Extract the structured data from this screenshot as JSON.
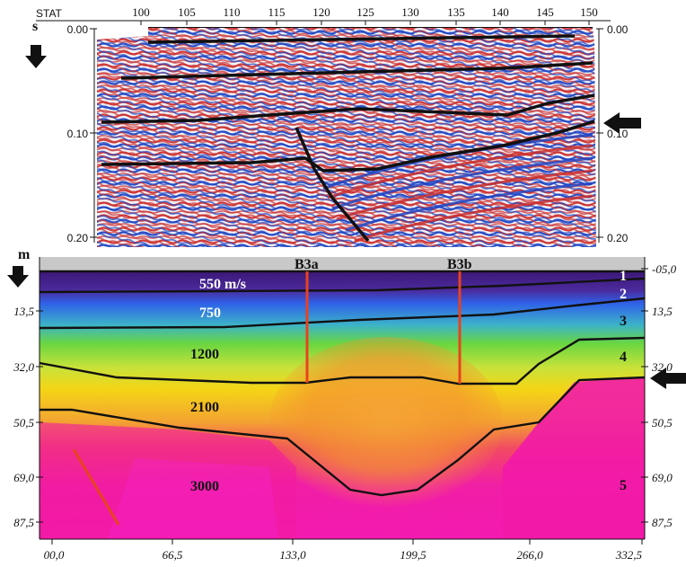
{
  "seismic": {
    "header_label": "STAT",
    "unit_label": "s",
    "station_ticks": [
      "100",
      "105",
      "110",
      "115",
      "120",
      "125",
      "130",
      "135",
      "140",
      "145",
      "150"
    ],
    "time_ticks_left": [
      "0.00",
      "0.10",
      "0.20"
    ],
    "time_ticks_right": [
      "0.00",
      "0.10",
      "0.20"
    ]
  },
  "velocity": {
    "unit_label": "m",
    "depth_ticks_left": [
      "13,5",
      "32,0",
      "50,5",
      "69,0",
      "87,5"
    ],
    "depth_ticks_right": [
      "-05,0",
      "13,5",
      "32,0",
      "50,5",
      "69,0",
      "87,5"
    ],
    "distance_ticks": [
      "00,0",
      "66,5",
      "133,0",
      "199,5",
      "266,0",
      "332,5"
    ],
    "velocities": [
      "550 m/s",
      "750",
      "1200",
      "2100",
      "3000"
    ],
    "layer_numbers": [
      "1",
      "2",
      "3",
      "4",
      "5"
    ],
    "boreholes": [
      "B3a",
      "B3b"
    ],
    "colors": {
      "v550": "#4a1a8c",
      "v750": "#2e63e6",
      "v1200": "#5fd14a",
      "v2100": "#f2d21a",
      "v3000": "#f21aa8",
      "borehole": "#e8431e"
    }
  }
}
